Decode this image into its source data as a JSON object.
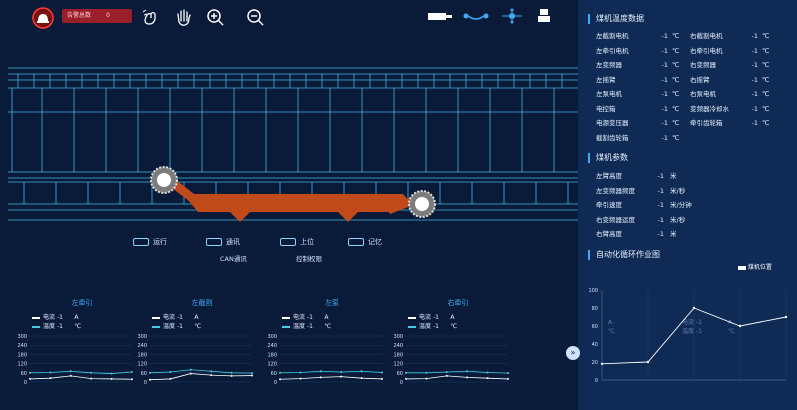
{
  "alarm": {
    "label": "告警总数",
    "count": "0"
  },
  "toolbar": {
    "icons": [
      "hand-wave-icon",
      "hand-stop-icon",
      "zoom-in-icon",
      "zoom-out-icon"
    ]
  },
  "network": {
    "icons": [
      "device-icon",
      "link-icon",
      "network-node-icon",
      "robot-icon"
    ]
  },
  "legend": {
    "items": [
      "运行",
      "通讯",
      "上位",
      "记忆"
    ],
    "sub_can": "CAN通讯",
    "sub_control": "控制权限"
  },
  "temperature": {
    "title": "煤机温度数据",
    "rows": [
      {
        "l": "左截割电机",
        "lv": "-1",
        "lu": "℃",
        "r": "右截割电机",
        "rv": "-1",
        "ru": "℃"
      },
      {
        "l": "左牵引电机",
        "lv": "-1",
        "lu": "℃",
        "r": "右牵引电机",
        "rv": "-1",
        "ru": "℃"
      },
      {
        "l": "左变频器",
        "lv": "-1",
        "lu": "℃",
        "r": "右变频器",
        "rv": "-1",
        "ru": "℃"
      },
      {
        "l": "左摇臂",
        "lv": "-1",
        "lu": "℃",
        "r": "右摇臂",
        "rv": "-1",
        "ru": "℃"
      },
      {
        "l": "左泵电机",
        "lv": "-1",
        "lu": "℃",
        "r": "右泵电机",
        "rv": "-1",
        "ru": "℃"
      },
      {
        "l": "电控箱",
        "lv": "-1",
        "lu": "℃",
        "r": "变频器冷却水",
        "rv": "-1",
        "ru": "℃"
      },
      {
        "l": "电源变压器",
        "lv": "-1",
        "lu": "℃",
        "r": "牵引齿轮箱",
        "rv": "-1",
        "ru": "℃"
      },
      {
        "l": "截割齿轮箱",
        "lv": "-1",
        "lu": "℃",
        "r": "",
        "rv": "",
        "ru": ""
      }
    ]
  },
  "params": {
    "title": "煤机参数",
    "rows": [
      {
        "k": "左臂高度",
        "v": "-1",
        "u": "米"
      },
      {
        "k": "左变频器频度",
        "v": "-1",
        "u": "米/秒"
      },
      {
        "k": "牵引速度",
        "v": "-1",
        "u": "米/分钟"
      },
      {
        "k": "右变频器运度",
        "v": "-1",
        "u": "米/秒"
      },
      {
        "k": "右臂高度",
        "v": "-1",
        "u": "米"
      }
    ]
  },
  "cycle": {
    "title": "自动化循环作业图",
    "legend": "煤机位置",
    "ghost_rows": [
      {
        "a": "A",
        "b": "电流 -1",
        "c": "A"
      },
      {
        "a": "℃",
        "b": "温度 -1",
        "c": "℃"
      }
    ]
  },
  "chart_data": [
    {
      "type": "line",
      "title": "自动化循环作业图",
      "series": [
        {
          "name": "煤机位置",
          "values": [
            18,
            20,
            80,
            60,
            70
          ]
        }
      ],
      "x": [
        0,
        1,
        2,
        3,
        4
      ],
      "ylim": [
        0,
        100
      ],
      "yticks": [
        "100",
        "80",
        "60",
        "40",
        "20",
        "0"
      ]
    },
    {
      "type": "line",
      "title": "左牵引",
      "legend": [
        {
          "k": "电流",
          "v": "-1",
          "u": "A"
        },
        {
          "k": "温度",
          "v": "-1",
          "u": "℃"
        }
      ],
      "ylim": [
        0,
        300
      ],
      "yticks": [
        "300",
        "240",
        "180",
        "120",
        "60",
        "0"
      ],
      "series": [
        {
          "name": "电流",
          "values": [
            20,
            25,
            40,
            22,
            20,
            18
          ]
        },
        {
          "name": "温度",
          "values": [
            60,
            62,
            70,
            60,
            55,
            65
          ]
        }
      ]
    },
    {
      "type": "line",
      "title": "左截割",
      "legend": [
        {
          "k": "电流",
          "v": "-1",
          "u": "A"
        },
        {
          "k": "温度",
          "v": "-1",
          "u": "℃"
        }
      ],
      "ylim": [
        0,
        300
      ],
      "yticks": [
        "300",
        "240",
        "180",
        "120",
        "60",
        "0"
      ],
      "series": [
        {
          "name": "电流",
          "values": [
            15,
            20,
            55,
            45,
            40,
            42
          ]
        },
        {
          "name": "温度",
          "values": [
            60,
            65,
            80,
            70,
            60,
            58
          ]
        }
      ]
    },
    {
      "type": "line",
      "title": "左泵",
      "legend": [
        {
          "k": "电流",
          "v": "-1",
          "u": "A"
        },
        {
          "k": "温度",
          "v": "-1",
          "u": "℃"
        }
      ],
      "ylim": [
        0,
        300
      ],
      "yticks": [
        "300",
        "240",
        "180",
        "120",
        "60",
        "0"
      ],
      "series": [
        {
          "name": "电流",
          "values": [
            18,
            22,
            30,
            35,
            25,
            20
          ]
        },
        {
          "name": "温度",
          "values": [
            60,
            62,
            70,
            65,
            70,
            62
          ]
        }
      ]
    },
    {
      "type": "line",
      "title": "右牵引",
      "legend": [
        {
          "k": "电流",
          "v": "-1",
          "u": "A"
        },
        {
          "k": "温度",
          "v": "-1",
          "u": "℃"
        }
      ],
      "ylim": [
        0,
        300
      ],
      "yticks": [
        "300",
        "240",
        "180",
        "120",
        "60",
        "0"
      ],
      "series": [
        {
          "name": "电流",
          "values": [
            20,
            22,
            40,
            30,
            25,
            20
          ]
        },
        {
          "name": "温度",
          "values": [
            60,
            60,
            65,
            70,
            62,
            58
          ]
        }
      ]
    }
  ]
}
